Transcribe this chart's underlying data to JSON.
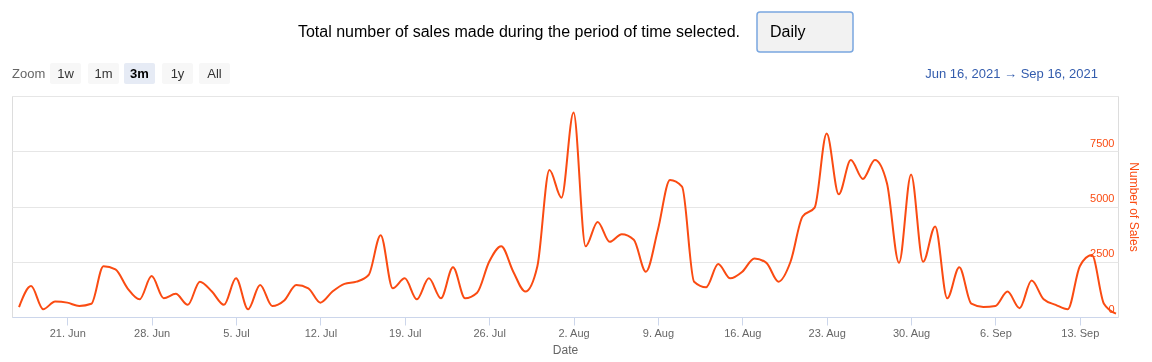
{
  "chart_data": {
    "type": "line",
    "title": "Total number of sales made during the period of time selected.",
    "xlabel": "Date",
    "ylabel": "Number of Sales",
    "annotations": [
      "Daily",
      "Zoom",
      "1w",
      "1m",
      "3m",
      "1y",
      "All",
      "Jun 16, 2021 → Sep 16, 2021"
    ],
    "x": [
      "2021-06-17",
      "2021-06-18",
      "2021-06-19",
      "2021-06-20",
      "2021-06-21",
      "2021-06-22",
      "2021-06-23",
      "2021-06-24",
      "2021-06-25",
      "2021-06-26",
      "2021-06-27",
      "2021-06-28",
      "2021-06-29",
      "2021-06-30",
      "2021-07-01",
      "2021-07-02",
      "2021-07-03",
      "2021-07-04",
      "2021-07-05",
      "2021-07-06",
      "2021-07-07",
      "2021-07-08",
      "2021-07-09",
      "2021-07-10",
      "2021-07-11",
      "2021-07-12",
      "2021-07-13",
      "2021-07-14",
      "2021-07-15",
      "2021-07-16",
      "2021-07-17",
      "2021-07-18",
      "2021-07-19",
      "2021-07-20",
      "2021-07-21",
      "2021-07-22",
      "2021-07-23",
      "2021-07-24",
      "2021-07-25",
      "2021-07-26",
      "2021-07-27",
      "2021-07-28",
      "2021-07-29",
      "2021-07-30",
      "2021-07-31",
      "2021-08-01",
      "2021-08-02",
      "2021-08-03",
      "2021-08-04",
      "2021-08-05",
      "2021-08-06",
      "2021-08-07",
      "2021-08-08",
      "2021-08-09",
      "2021-08-10",
      "2021-08-11",
      "2021-08-12",
      "2021-08-13",
      "2021-08-14",
      "2021-08-15",
      "2021-08-16",
      "2021-08-17",
      "2021-08-18",
      "2021-08-19",
      "2021-08-20",
      "2021-08-21",
      "2021-08-22",
      "2021-08-23",
      "2021-08-24",
      "2021-08-25",
      "2021-08-26",
      "2021-08-27",
      "2021-08-28",
      "2021-08-29",
      "2021-08-30",
      "2021-08-31",
      "2021-09-01",
      "2021-09-02",
      "2021-09-03",
      "2021-09-04",
      "2021-09-05",
      "2021-09-06",
      "2021-09-07",
      "2021-09-08",
      "2021-09-09",
      "2021-09-10",
      "2021-09-11",
      "2021-09-12",
      "2021-09-13",
      "2021-09-14",
      "2021-09-15",
      "2021-09-16"
    ],
    "series": [
      {
        "color": "#fa4b12",
        "values": [
          450,
          1400,
          350,
          700,
          650,
          500,
          600,
          2300,
          2150,
          1300,
          800,
          1850,
          850,
          1050,
          550,
          1600,
          1150,
          550,
          1750,
          350,
          1450,
          500,
          750,
          1450,
          1300,
          650,
          1150,
          1500,
          1600,
          1900,
          3700,
          1300,
          1750,
          800,
          1750,
          850,
          2250,
          850,
          1100,
          2500,
          3200,
          2050,
          1150,
          2300,
          6650,
          5400,
          9250,
          3200,
          4300,
          3400,
          3750,
          3500,
          2050,
          3950,
          6200,
          5900,
          1600,
          1350,
          2400,
          1750,
          2050,
          2650,
          2450,
          1600,
          2500,
          4550,
          4950,
          8300,
          5550,
          7100,
          6250,
          7100,
          6050,
          2450,
          6450,
          2500,
          4100,
          850,
          2250,
          600,
          450,
          500,
          1150,
          400,
          1650,
          800,
          550,
          350,
          2300,
          2800,
          600,
          150
        ]
      }
    ],
    "xlim": [
      "2021-06-16T10:00",
      "2021-09-16T04:00"
    ],
    "xticks": [
      {
        "value": "2021-06-21",
        "label": "21. Jun"
      },
      {
        "value": "2021-06-28",
        "label": "28. Jun"
      },
      {
        "value": "2021-07-05",
        "label": "5. Jul"
      },
      {
        "value": "2021-07-12",
        "label": "12. Jul"
      },
      {
        "value": "2021-07-19",
        "label": "19. Jul"
      },
      {
        "value": "2021-07-26",
        "label": "26. Jul"
      },
      {
        "value": "2021-08-02",
        "label": "2. Aug"
      },
      {
        "value": "2021-08-09",
        "label": "9. Aug"
      },
      {
        "value": "2021-08-16",
        "label": "16. Aug"
      },
      {
        "value": "2021-08-23",
        "label": "23. Aug"
      },
      {
        "value": "2021-08-30",
        "label": "30. Aug"
      },
      {
        "value": "2021-09-06",
        "label": "6. Sep"
      },
      {
        "value": "2021-09-13",
        "label": "13. Sep"
      }
    ],
    "ylim": [
      0,
      10000
    ],
    "yticks": [
      0,
      2500,
      5000,
      7500,
      {
        "value": 10000,
        "label": null
      }
    ],
    "grid": "y",
    "marker": "none",
    "line_style": "solid"
  }
}
